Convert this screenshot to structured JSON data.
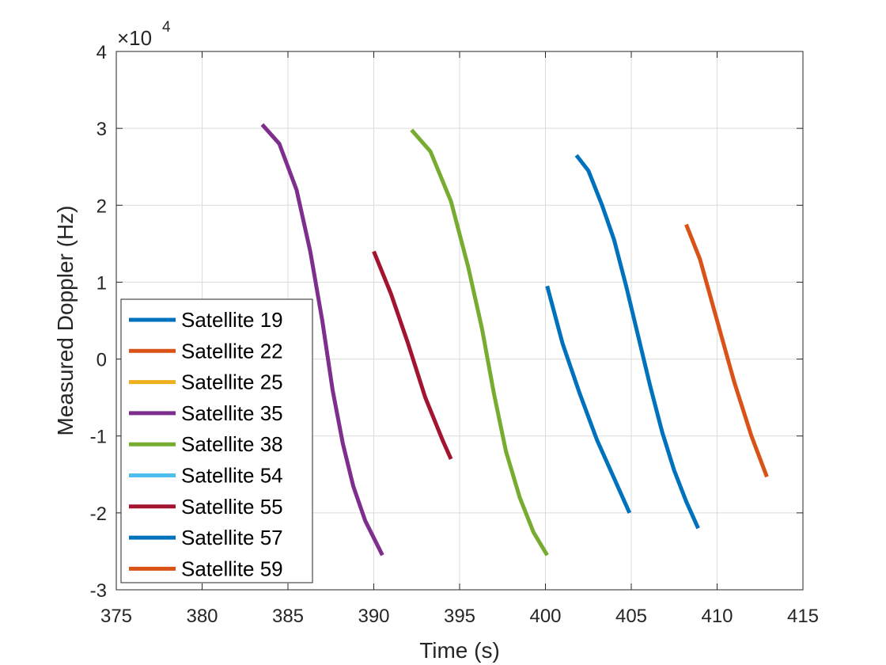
{
  "chart_data": {
    "type": "line",
    "title": "",
    "xlabel": "Time (s)",
    "ylabel": "Measured Doppler (Hz)",
    "xlim": [
      375,
      415
    ],
    "ylim": [
      -30000,
      40000
    ],
    "xticks": [
      375,
      380,
      385,
      390,
      395,
      400,
      405,
      410,
      415
    ],
    "yticks": [
      -30000,
      -20000,
      -10000,
      0,
      10000,
      20000,
      30000,
      40000
    ],
    "ytick_labels": [
      "-3",
      "-2",
      "-1",
      "0",
      "1",
      "2",
      "3",
      "4"
    ],
    "y_exponent_label": "×10",
    "y_exponent_power": "4",
    "grid": true,
    "legend_position": "bottom-left",
    "series": [
      {
        "name": "Satellite 19",
        "color": "#0072BD",
        "x": [
          400.1,
          401.0,
          402.0,
          403.0,
          404.0,
          404.9
        ],
        "y": [
          9500,
          2000,
          -4500,
          -10500,
          -15500,
          -20000
        ]
      },
      {
        "name": "Satellite 22",
        "color": "#D95319",
        "x": [
          408.2,
          409.0,
          410.0,
          411.0,
          412.0,
          412.9
        ],
        "y": [
          17500,
          13000,
          5000,
          -3000,
          -10000,
          -15300
        ]
      },
      {
        "name": "Satellite 25",
        "color": "#EDB120",
        "x": [],
        "y": []
      },
      {
        "name": "Satellite 35",
        "color": "#7E2F8E",
        "x": [
          383.5,
          384.5,
          385.5,
          386.3,
          387.0,
          387.6,
          388.2,
          388.8,
          389.5,
          390.5
        ],
        "y": [
          30500,
          28000,
          22000,
          14000,
          5000,
          -4000,
          -11000,
          -16500,
          -21000,
          -25500
        ]
      },
      {
        "name": "Satellite 38",
        "color": "#77AC30",
        "x": [
          392.2,
          393.3,
          394.5,
          395.5,
          396.3,
          397.0,
          397.7,
          398.5,
          399.3,
          400.1
        ],
        "y": [
          29800,
          27000,
          20500,
          12000,
          4000,
          -4500,
          -12000,
          -18000,
          -22500,
          -25500
        ]
      },
      {
        "name": "Satellite 54",
        "color": "#4DBEEE",
        "x": [],
        "y": []
      },
      {
        "name": "Satellite 55",
        "color": "#A2142F",
        "x": [
          390.0,
          391.0,
          392.0,
          393.0,
          394.0,
          394.5
        ],
        "y": [
          14000,
          8500,
          2000,
          -5000,
          -10500,
          -13000
        ]
      },
      {
        "name": "Satellite 57",
        "color": "#0072BD",
        "x": [
          401.8,
          402.5,
          403.3,
          404.0,
          404.7,
          405.4,
          406.1,
          406.8,
          407.5,
          408.2,
          408.9
        ],
        "y": [
          26500,
          24500,
          20000,
          15500,
          9500,
          3000,
          -3500,
          -9500,
          -14500,
          -18500,
          -22000
        ]
      },
      {
        "name": "Satellite 59",
        "color": "#D95319",
        "x": [],
        "y": []
      }
    ]
  }
}
